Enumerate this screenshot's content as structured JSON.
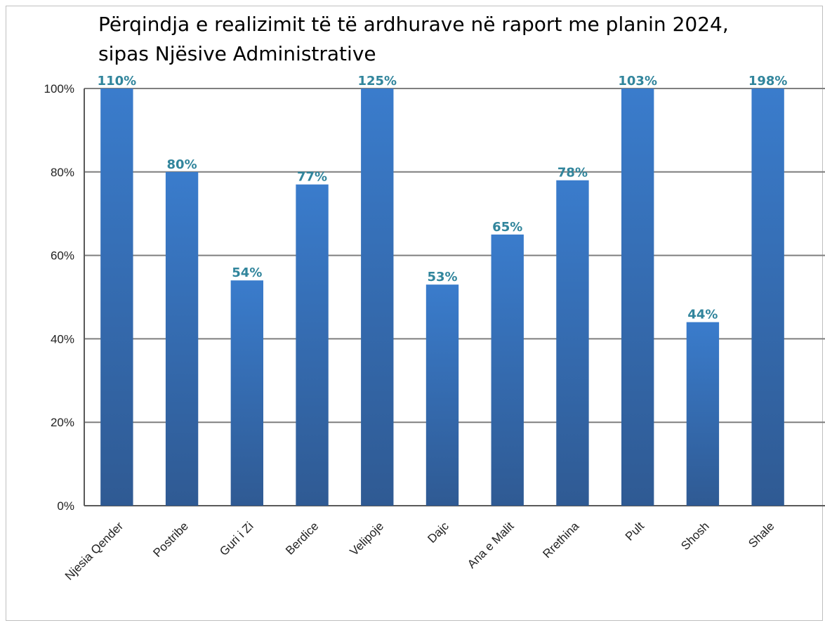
{
  "chart_data": {
    "type": "bar",
    "title": "Përqindja e realizimit të të ardhurave në raport me planin 2024, sipas Njësive Administrative",
    "categories": [
      "Njesia Qender",
      "Postribe",
      "Guri i Zi",
      "Berdice",
      "Velipoje",
      "Dajc",
      "Ana e Malit",
      "Rrethina",
      "Pult",
      "Shosh",
      "Shale"
    ],
    "values": [
      110,
      80,
      54,
      77,
      125,
      53,
      65,
      78,
      103,
      44,
      198
    ],
    "data_labels": [
      "110%",
      "80%",
      "54%",
      "77%",
      "125%",
      "53%",
      "65%",
      "78%",
      "103%",
      "44%",
      "198%"
    ],
    "ylim": [
      0,
      100
    ],
    "y_ticks": [
      0,
      20,
      40,
      60,
      80,
      100
    ],
    "y_tick_labels": [
      "0%",
      "20%",
      "40%",
      "60%",
      "80%",
      "100%"
    ],
    "grid": true,
    "legend": "none",
    "colors": {
      "bar_top": "#3a7ccc",
      "bar_bottom": "#2f5a93",
      "data_label": "#31859c",
      "gridline": "#7f7f7f",
      "axis": "#595959"
    }
  }
}
